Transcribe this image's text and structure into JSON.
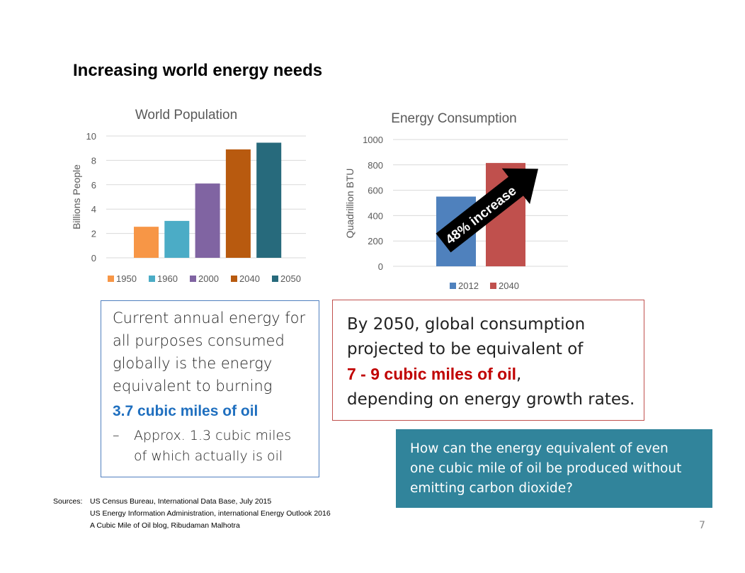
{
  "slide": {
    "title": "Increasing world energy needs",
    "page_number": "7"
  },
  "chart_data": [
    {
      "type": "bar",
      "title": "World Population",
      "ylabel": "Billions People",
      "xlabel": "",
      "ylim": [
        0,
        10
      ],
      "yticks": [
        "0",
        "2",
        "4",
        "6",
        "8",
        "10"
      ],
      "grid": true,
      "legend_position": "bottom",
      "series": [
        {
          "name": "1950",
          "value": 2.55,
          "color": "#f79646"
        },
        {
          "name": "1960",
          "value": 3.03,
          "color": "#4bacc6"
        },
        {
          "name": "2000",
          "value": 6.1,
          "color": "#8064a2"
        },
        {
          "name": "2040",
          "value": 8.9,
          "color": "#b85a0f"
        },
        {
          "name": "2050",
          "value": 9.45,
          "color": "#276a7c"
        }
      ]
    },
    {
      "type": "bar",
      "title": "Energy Consumption",
      "ylabel": "Quadrillion BTU",
      "xlabel": "",
      "ylim": [
        0,
        1000
      ],
      "yticks": [
        "0",
        "200",
        "400",
        "600",
        "800",
        "1000"
      ],
      "grid": true,
      "legend_position": "bottom",
      "series": [
        {
          "name": "2012",
          "value": 550,
          "color": "#4f81bd"
        },
        {
          "name": "2040",
          "value": 815,
          "color": "#c0504d"
        }
      ],
      "annotation": "48%  increase"
    }
  ],
  "left_box": {
    "lines": [
      "Current annual energy for",
      "all purposes consumed",
      "globally is the energy",
      "equivalent to burning"
    ],
    "highlight": "3.7 cubic miles of oil",
    "bullet_dash": "–",
    "sub_lines": [
      "Approx. 1.3 cubic miles",
      "of which actually is oil"
    ]
  },
  "right_box": {
    "line1": "By 2050, global consumption",
    "line2": "projected to be equivalent of",
    "highlight": "7 - 9 cubic miles of oil",
    "comma": ",",
    "line4": "depending on energy growth rates."
  },
  "teal_box": {
    "lines": [
      "How can the energy equivalent of even",
      "one cubic mile of oil be produced without",
      "emitting carbon dioxide?"
    ]
  },
  "sources": {
    "label": "Sources:",
    "items": [
      "US Census Bureau, International Data Base, July 2015",
      "US Energy Information Administration, international Energy Outlook 2016",
      "A Cubic Mile of Oil blog, Ribudaman Malhotra"
    ]
  }
}
